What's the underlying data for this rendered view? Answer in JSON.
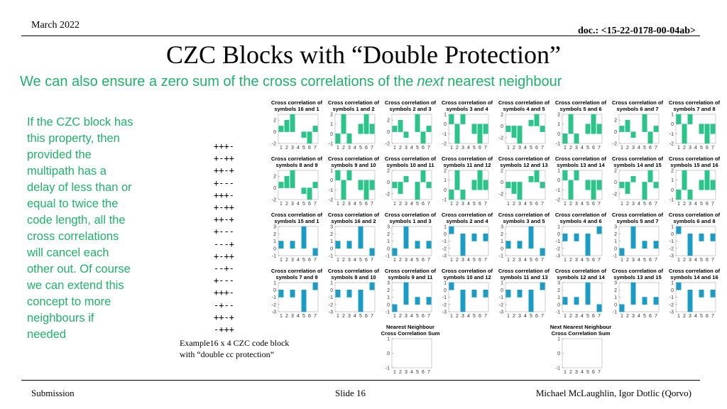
{
  "header": {
    "date": "March 2022",
    "doc": "doc.: <15-22-0178-00-04ab>"
  },
  "title": "CZC Blocks with “Double Protection”",
  "subtitle": {
    "before": "We can also ensure a zero sum of the cross correlations of the",
    "emphasis": "next",
    "after": "nearest neighbour"
  },
  "body": [
    "If the CZC block has",
    "this property, then",
    "provided the",
    "multipath has a",
    "delay of less than or",
    "equal to twice the",
    "code length, all the",
    "cross correlations",
    "will cancel each",
    "other out. Of course",
    "we can extend this",
    "concept to more",
    "neighbours if",
    "needed"
  ],
  "code": [
    "+++-",
    "+-++",
    "++-+",
    "+---",
    "+++-",
    "+-++",
    "++-+",
    "+---",
    "---+",
    "+-++",
    "--+-",
    "+---",
    "+++-",
    "-+--",
    "++-+",
    "-+++"
  ],
  "caption": [
    "Example16 x 4 CZC code block",
    "with “double cc protection”"
  ],
  "plots": {
    "categories": [
      1,
      2,
      3,
      4,
      5,
      6,
      7
    ],
    "panels": [
      {
        "title": [
          "Cross correlation of",
          "symbols 16 and 1"
        ],
        "color": "#2bc48a",
        "values": [
          1,
          2,
          3,
          0,
          -1,
          -2,
          1
        ],
        "ylim": [
          -2,
          3
        ],
        "yticks": [
          -2,
          0,
          2
        ]
      },
      {
        "title": [
          "Cross correlation of",
          "symbols 1 and 2"
        ],
        "color": "#2bc48a",
        "values": [
          -1,
          2,
          -1,
          0,
          1,
          2,
          1
        ],
        "ylim": [
          -1,
          2
        ],
        "yticks": [
          -1,
          0,
          1,
          2
        ]
      },
      {
        "title": [
          "Cross correlation of",
          "symbols 2 and 3"
        ],
        "color": "#2bc48a",
        "values": [
          1,
          2,
          -1,
          0,
          3,
          -2,
          1
        ],
        "ylim": [
          -2,
          3
        ],
        "yticks": [
          -2,
          0,
          2
        ]
      },
      {
        "title": [
          "Cross correlation of",
          "symbols 3 and 4"
        ],
        "color": "#2bc48a",
        "values": [
          1,
          -2,
          1,
          0,
          -1,
          -2,
          -1
        ],
        "ylim": [
          -2,
          1
        ],
        "yticks": [
          -2,
          -1,
          0,
          1
        ]
      },
      {
        "title": [
          "Cross correlation of",
          "symbols 4 and 5"
        ],
        "color": "#2bc48a",
        "values": [
          -1,
          -2,
          -3,
          0,
          1,
          2,
          -1
        ],
        "ylim": [
          -3,
          2
        ],
        "yticks": [
          -2,
          0,
          2
        ]
      },
      {
        "title": [
          "Cross correlation of",
          "symbols 5 and 6"
        ],
        "color": "#2bc48a",
        "values": [
          -1,
          2,
          -1,
          0,
          1,
          2,
          1
        ],
        "ylim": [
          -1,
          2
        ],
        "yticks": [
          -1,
          0,
          1,
          2
        ]
      },
      {
        "title": [
          "Cross correlation of",
          "symbols 6 and 7"
        ],
        "color": "#2bc48a",
        "values": [
          1,
          2,
          -1,
          0,
          3,
          -2,
          1
        ],
        "ylim": [
          -2,
          3
        ],
        "yticks": [
          -2,
          0,
          2
        ]
      },
      {
        "title": [
          "Cross correlation of",
          "symbols 7 and 8"
        ],
        "color": "#2bc48a",
        "values": [
          1,
          -2,
          1,
          0,
          -1,
          -2,
          -1
        ],
        "ylim": [
          -2,
          1
        ],
        "yticks": [
          -2,
          -1,
          0,
          1
        ]
      },
      {
        "title": [
          "Cross correlation of",
          "symbols 8 and 9"
        ],
        "color": "#2bc48a",
        "values": [
          1,
          2,
          3,
          0,
          -1,
          -2,
          1
        ],
        "ylim": [
          -2,
          3
        ],
        "yticks": [
          -2,
          0,
          2
        ]
      },
      {
        "title": [
          "Cross correlation of",
          "symbols 9 and 10"
        ],
        "color": "#2bc48a",
        "values": [
          1,
          -2,
          1,
          0,
          -1,
          -2,
          -1
        ],
        "ylim": [
          -2,
          1
        ],
        "yticks": [
          -2,
          -1,
          0,
          1
        ]
      },
      {
        "title": [
          "Cross correlation of",
          "symbols 10 and 11"
        ],
        "color": "#2bc48a",
        "values": [
          -1,
          -2,
          1,
          0,
          -3,
          2,
          -1
        ],
        "ylim": [
          -3,
          2
        ],
        "yticks": [
          -2,
          0,
          2
        ]
      },
      {
        "title": [
          "Cross correlation of",
          "symbols 11 and 12"
        ],
        "color": "#2bc48a",
        "values": [
          -1,
          2,
          -1,
          0,
          1,
          2,
          1
        ],
        "ylim": [
          -1,
          2
        ],
        "yticks": [
          -1,
          0,
          1,
          2
        ]
      },
      {
        "title": [
          "Cross correlation of",
          "symbols 12 and 13"
        ],
        "color": "#2bc48a",
        "values": [
          -1,
          -2,
          -3,
          0,
          1,
          2,
          -1
        ],
        "ylim": [
          -3,
          2
        ],
        "yticks": [
          -2,
          0,
          2
        ]
      },
      {
        "title": [
          "Cross correlation of",
          "symbols 13 and 14"
        ],
        "color": "#2bc48a",
        "values": [
          1,
          -2,
          1,
          0,
          -1,
          -2,
          -1
        ],
        "ylim": [
          -2,
          1
        ],
        "yticks": [
          -2,
          -1,
          0,
          1
        ]
      },
      {
        "title": [
          "Cross correlation of",
          "symbols 14 and 15"
        ],
        "color": "#2bc48a",
        "values": [
          -1,
          -2,
          1,
          0,
          -3,
          2,
          -1
        ],
        "ylim": [
          -3,
          2
        ],
        "yticks": [
          -2,
          0,
          2
        ]
      },
      {
        "title": [
          "Cross correlation of",
          "symbols 15 and 16"
        ],
        "color": "#2bc48a",
        "values": [
          -1,
          2,
          -1,
          0,
          1,
          2,
          1
        ],
        "ylim": [
          -1,
          2
        ],
        "yticks": [
          -1,
          0,
          1,
          2
        ]
      },
      {
        "title": [
          "Cross correlation of",
          "symbols 15 and 1"
        ],
        "color": "#1a9cc4",
        "values": [
          1,
          0,
          1,
          0,
          3,
          0,
          -1
        ],
        "ylim": [
          -1,
          3
        ],
        "yticks": [
          -1,
          0,
          1,
          2,
          3
        ]
      },
      {
        "title": [
          "Cross correlation of",
          "symbols 16 and 2"
        ],
        "color": "#1a9cc4",
        "values": [
          1,
          0,
          1,
          0,
          3,
          0,
          -1
        ],
        "ylim": [
          -1,
          3
        ],
        "yticks": [
          -1,
          0,
          1,
          2,
          3
        ]
      },
      {
        "title": [
          "Cross correlation of",
          "symbols 1 and 3"
        ],
        "color": "#1a9cc4",
        "values": [
          -1,
          0,
          3,
          0,
          1,
          0,
          1
        ],
        "ylim": [
          -1,
          3
        ],
        "yticks": [
          -1,
          0,
          1,
          2,
          3
        ]
      },
      {
        "title": [
          "Cross correlation of",
          "symbols 2 and 4"
        ],
        "color": "#1a9cc4",
        "values": [
          1,
          0,
          -3,
          0,
          -1,
          0,
          -1
        ],
        "ylim": [
          -3,
          1
        ],
        "yticks": [
          -3,
          -2,
          -1,
          0,
          1
        ]
      },
      {
        "title": [
          "Cross correlation of",
          "symbols 3 and 5"
        ],
        "color": "#1a9cc4",
        "values": [
          1,
          0,
          1,
          0,
          3,
          0,
          -1
        ],
        "ylim": [
          -1,
          3
        ],
        "yticks": [
          -1,
          0,
          1,
          2,
          3
        ]
      },
      {
        "title": [
          "Cross correlation of",
          "symbols 4 and 6"
        ],
        "color": "#1a9cc4",
        "values": [
          -1,
          0,
          -1,
          0,
          -3,
          0,
          1
        ],
        "ylim": [
          -3,
          1
        ],
        "yticks": [
          -3,
          -2,
          -1,
          0,
          1
        ]
      },
      {
        "title": [
          "Cross correlation of",
          "symbols 5 and 7"
        ],
        "color": "#1a9cc4",
        "values": [
          -1,
          0,
          3,
          0,
          1,
          0,
          1
        ],
        "ylim": [
          -1,
          3
        ],
        "yticks": [
          -1,
          0,
          1,
          2,
          3
        ]
      },
      {
        "title": [
          "Cross correlation of",
          "symbols 6 and 8"
        ],
        "color": "#1a9cc4",
        "values": [
          1,
          0,
          -3,
          0,
          -1,
          0,
          -1
        ],
        "ylim": [
          -3,
          1
        ],
        "yticks": [
          -3,
          -2,
          -1,
          0,
          1
        ]
      },
      {
        "title": [
          "Cross correlation of",
          "symbols 7 and 9"
        ],
        "color": "#1a9cc4",
        "values": [
          -1,
          0,
          -1,
          0,
          -3,
          0,
          1
        ],
        "ylim": [
          -3,
          1
        ],
        "yticks": [
          -3,
          -2,
          -1,
          0,
          1
        ]
      },
      {
        "title": [
          "Cross correlation of",
          "symbols 8 and 10"
        ],
        "color": "#1a9cc4",
        "values": [
          -1,
          0,
          -1,
          0,
          -3,
          0,
          1
        ],
        "ylim": [
          -3,
          1
        ],
        "yticks": [
          -3,
          -2,
          -1,
          0,
          1
        ]
      },
      {
        "title": [
          "Cross correlation of",
          "symbols 9 and 11"
        ],
        "color": "#1a9cc4",
        "values": [
          -1,
          0,
          3,
          0,
          1,
          0,
          1
        ],
        "ylim": [
          -1,
          3
        ],
        "yticks": [
          -1,
          0,
          1,
          2,
          3
        ]
      },
      {
        "title": [
          "Cross correlation of",
          "symbols 10 and 12"
        ],
        "color": "#1a9cc4",
        "values": [
          1,
          0,
          -3,
          0,
          -1,
          0,
          -1
        ],
        "ylim": [
          -3,
          1
        ],
        "yticks": [
          -3,
          -2,
          -1,
          0,
          1
        ]
      },
      {
        "title": [
          "Cross correlation of",
          "symbols 11 and 13"
        ],
        "color": "#1a9cc4",
        "values": [
          -1,
          0,
          -1,
          0,
          -3,
          0,
          1
        ],
        "ylim": [
          -3,
          1
        ],
        "yticks": [
          -3,
          -2,
          -1,
          0,
          1
        ]
      },
      {
        "title": [
          "Cross correlation of",
          "symbols 12 and 14"
        ],
        "color": "#1a9cc4",
        "values": [
          1,
          0,
          1,
          0,
          3,
          0,
          -1
        ],
        "ylim": [
          -1,
          3
        ],
        "yticks": [
          -1,
          0,
          1,
          2,
          3
        ]
      },
      {
        "title": [
          "Cross correlation of",
          "symbols 13 and 15"
        ],
        "color": "#1a9cc4",
        "values": [
          -1,
          0,
          3,
          0,
          1,
          0,
          1
        ],
        "ylim": [
          -1,
          3
        ],
        "yticks": [
          -1,
          0,
          1,
          2,
          3
        ]
      },
      {
        "title": [
          "Cross correlation of",
          "symbols 14 and 16"
        ],
        "color": "#1a9cc4",
        "values": [
          1,
          0,
          -3,
          0,
          -1,
          0,
          -1
        ],
        "ylim": [
          -3,
          1
        ],
        "yticks": [
          -3,
          -2,
          -1,
          0,
          1
        ]
      },
      {
        "title": [
          "Nearest Neighbour",
          "Cross Correlation Sum"
        ],
        "color": "#555555",
        "values": [
          0,
          0,
          0,
          0,
          0,
          0,
          0
        ],
        "ylim": [
          -1,
          1
        ],
        "yticks": [
          -1,
          0,
          1
        ]
      },
      {
        "title": [
          "Next Nearest Neighbour",
          "Cross Correlation Sum"
        ],
        "color": "#555555",
        "values": [
          0,
          0,
          0,
          0,
          0,
          0,
          0
        ],
        "ylim": [
          -1,
          1
        ],
        "yticks": [
          -1,
          0,
          1
        ]
      }
    ]
  },
  "footer": {
    "left": "Submission",
    "center": "Slide 16",
    "right": "Michael McLaughlin, Igor Dotlic (Qorvo)"
  }
}
